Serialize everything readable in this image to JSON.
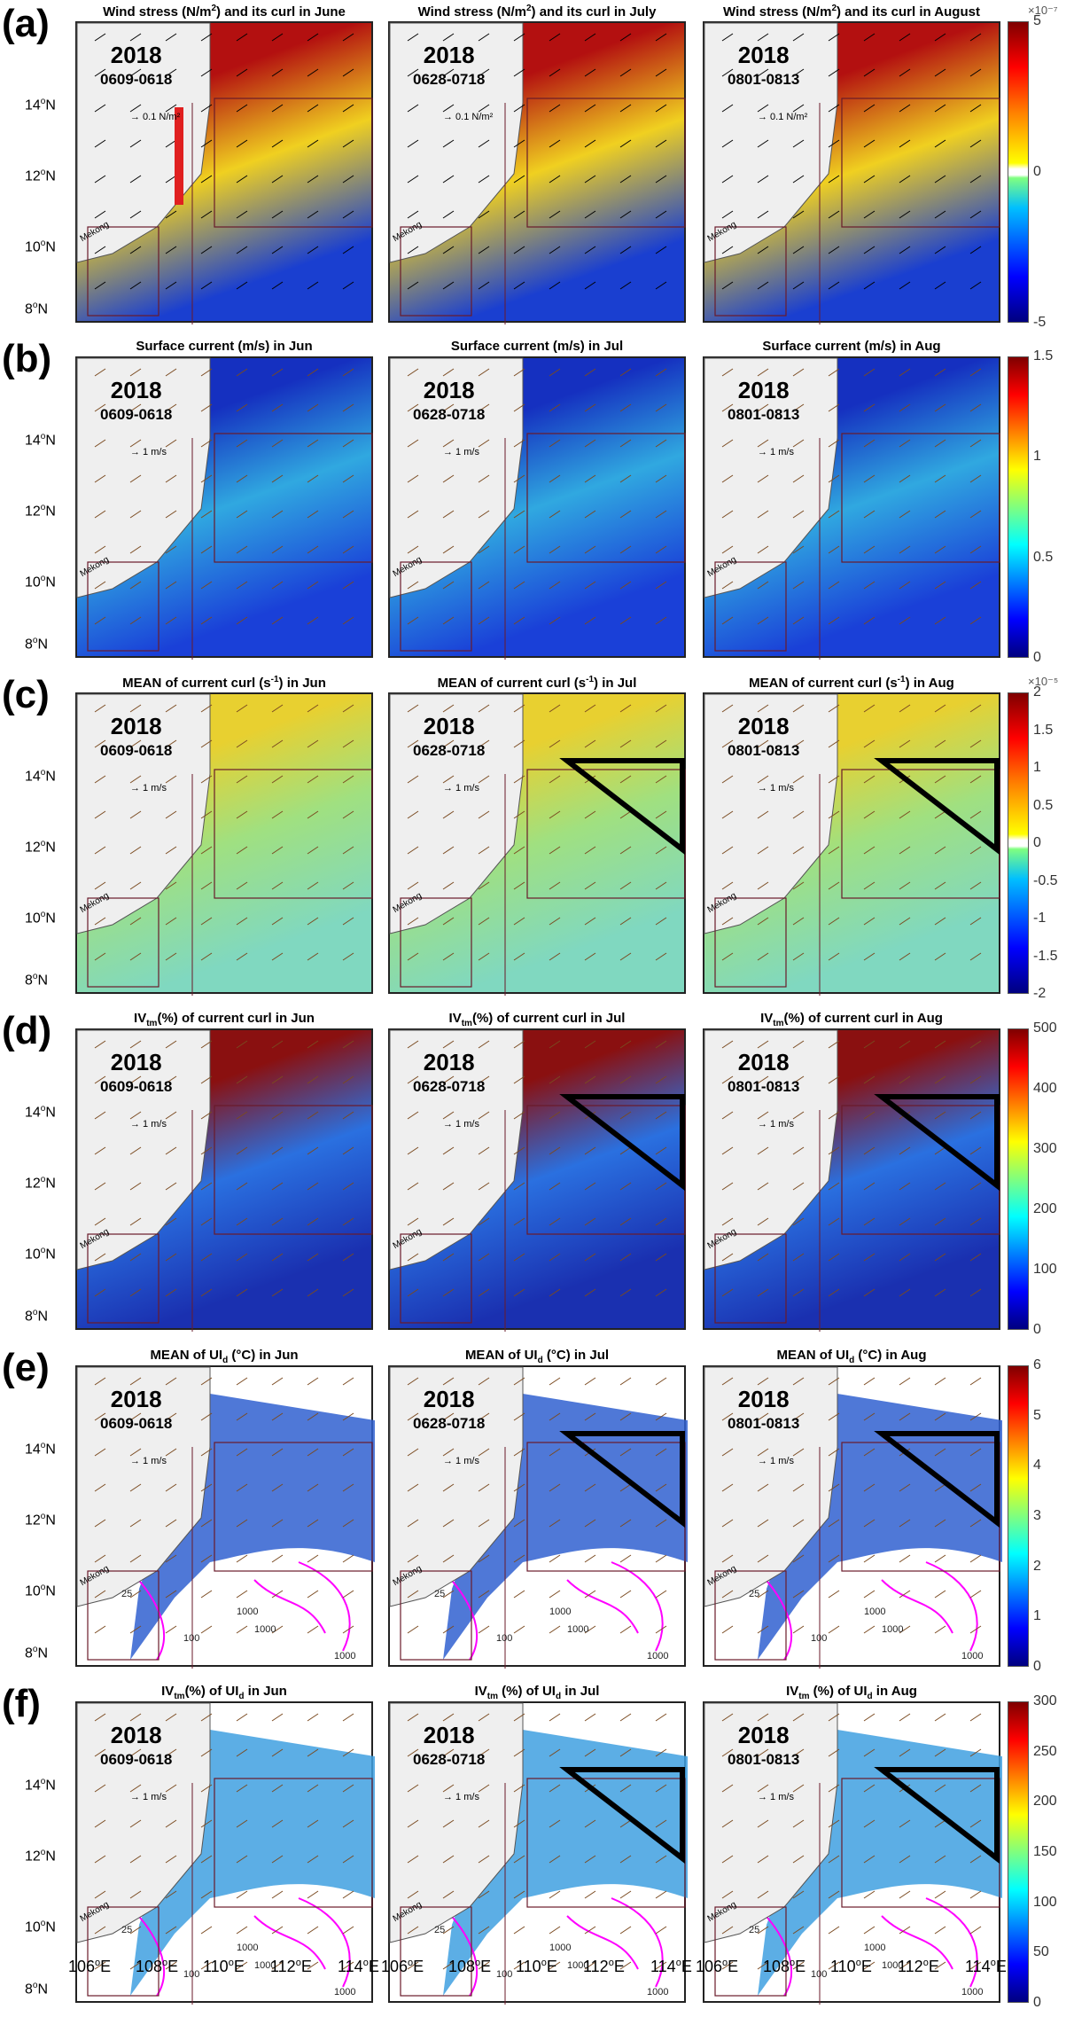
{
  "rows": [
    {
      "label": "(a)",
      "titles": [
        [
          "Wind stress (N/m",
          "2",
          ") and its curl in June"
        ],
        [
          "Wind stress (N/m",
          "2",
          ") and its curl in July"
        ],
        [
          "Wind stress (N/m",
          "2",
          ") and its curl in August"
        ]
      ],
      "title_style": "sup",
      "scale": "0.1 N/m²",
      "colorbar": {
        "exp": "×10⁻⁷",
        "ticks": [
          "5",
          "0",
          "-5"
        ],
        "range": [
          -5,
          5
        ]
      },
      "colors": {
        "top": "#b31010",
        "mid": "#f0d020",
        "bottom": "#1a3fd0"
      }
    },
    {
      "label": "(b)",
      "titles": [
        [
          "Surface current (m/s) in Jun"
        ],
        [
          "Surface current (m/s) in Jul"
        ],
        [
          "Surface current (m/s) in Aug"
        ]
      ],
      "scale": "1 m/s",
      "colorbar": {
        "exp": "",
        "ticks": [
          "1.5",
          "1",
          "0.5",
          "0"
        ],
        "range": [
          0,
          1.5
        ]
      },
      "colors": {
        "top": "#1530c0",
        "mid": "#30a8e0",
        "bottom": "#1a40d8"
      }
    },
    {
      "label": "(c)",
      "titles": [
        [
          "MEAN of current curl (s",
          "-1",
          ") in Jun"
        ],
        [
          "MEAN of current curl (s",
          "-1",
          ") in Jul"
        ],
        [
          "MEAN of current curl (s",
          "-1",
          ") in Aug"
        ]
      ],
      "title_style": "sup",
      "scale": "1 m/s",
      "colorbar": {
        "exp": "×10⁻⁵",
        "ticks": [
          "2",
          "1.5",
          "1",
          "0.5",
          "0",
          "-0.5",
          "-1",
          "-1.5",
          "-2"
        ],
        "range": [
          -2,
          2
        ]
      },
      "colors": {
        "top": "#e8d030",
        "mid": "#a0e080",
        "bottom": "#80d8c0"
      }
    },
    {
      "label": "(d)",
      "titles": [
        [
          "IV",
          "tm",
          "(%) of current curl in Jun"
        ],
        [
          "IV",
          "tm",
          "(%) of current curl in Jul"
        ],
        [
          "IV",
          "tm",
          "(%) of current curl in Aug"
        ]
      ],
      "title_style": "sub",
      "scale": "1 m/s",
      "colorbar": {
        "exp": "",
        "ticks": [
          "500",
          "400",
          "300",
          "200",
          "100",
          "0"
        ],
        "range": [
          0,
          500
        ]
      },
      "colors": {
        "top": "#8a1010",
        "mid": "#2a70e0",
        "bottom": "#1a30b0"
      }
    },
    {
      "label": "(e)",
      "titles": [
        [
          "MEAN of UI",
          "d",
          " (°C) in Jun"
        ],
        [
          "MEAN of UI",
          "d",
          " (°C) in Jul"
        ],
        [
          "MEAN of UI",
          "d",
          " (°C) in Aug"
        ]
      ],
      "title_style": "sub",
      "scale": "1 m/s",
      "colorbar": {
        "exp": "",
        "ticks": [
          "6",
          "5",
          "4",
          "3",
          "2",
          "1",
          "0"
        ],
        "range": [
          0,
          6
        ]
      },
      "colors": {
        "top": "#ffffff",
        "mid": "#3060d0",
        "bottom": "#ffffff"
      }
    },
    {
      "label": "(f)",
      "titles": [
        [
          "IV",
          "tm",
          "(%) of UI",
          "d",
          " in Jun"
        ],
        [
          "IV",
          "tm",
          " (%) of UI",
          "d",
          " in Jul"
        ],
        [
          "IV",
          "tm",
          " (%) of UI",
          "d",
          " in Aug"
        ]
      ],
      "title_style": "sub",
      "scale": "1 m/s",
      "colorbar": {
        "exp": "",
        "ticks": [
          "300",
          "250",
          "200",
          "150",
          "100",
          "50",
          "0"
        ],
        "range": [
          0,
          300
        ]
      },
      "colors": {
        "top": "#ffffff",
        "mid": "#40a0e0",
        "bottom": "#ffffff"
      }
    }
  ],
  "year": "2018",
  "periods": [
    "0609-0618",
    "0628-0718",
    "0801-0813"
  ],
  "mekong": "Mekong",
  "lat_labels": [
    "14",
    "12",
    "10",
    "8"
  ],
  "lat_suffix": "N",
  "lon_labels": [
    "106",
    "108",
    "110",
    "112",
    "114"
  ],
  "lon_suffix": "E",
  "contour_labels": [
    "1000",
    "1000",
    "1000",
    "100",
    "25"
  ],
  "colormap_jet": [
    "#00007f",
    "#0000ff",
    "#007fff",
    "#00ffff",
    "#7fff7f",
    "#ffff00",
    "#ff7f00",
    "#ff0000",
    "#7f0000"
  ]
}
